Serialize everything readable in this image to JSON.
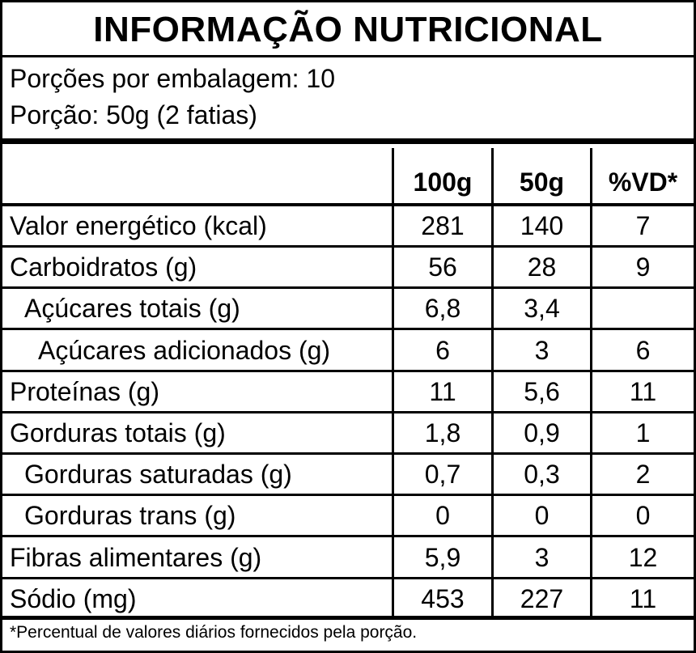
{
  "title": "INFORMAÇÃO NUTRICIONAL",
  "serving": {
    "servings_per_package": "Porções por embalagem: 10",
    "serving_size": "Porção: 50g (2 fatias)"
  },
  "columns": [
    "100g",
    "50g",
    "%VD*"
  ],
  "rows": [
    {
      "name": "Valor energético (kcal)",
      "per100": "281",
      "perServing": "140",
      "dv": "7",
      "indent": 0
    },
    {
      "name": "Carboidratos (g)",
      "per100": "56",
      "perServing": "28",
      "dv": "9",
      "indent": 0
    },
    {
      "name": "Açúcares totais (g)",
      "per100": "6,8",
      "perServing": "3,4",
      "dv": "",
      "indent": 1
    },
    {
      "name": "Açúcares adicionados (g)",
      "per100": "6",
      "perServing": "3",
      "dv": "6",
      "indent": 2
    },
    {
      "name": "Proteínas (g)",
      "per100": "11",
      "perServing": "5,6",
      "dv": "11",
      "indent": 0
    },
    {
      "name": "Gorduras totais (g)",
      "per100": "1,8",
      "perServing": "0,9",
      "dv": "1",
      "indent": 0
    },
    {
      "name": "Gorduras saturadas (g)",
      "per100": "0,7",
      "perServing": "0,3",
      "dv": "2",
      "indent": 1
    },
    {
      "name": "Gorduras trans (g)",
      "per100": "0",
      "perServing": "0",
      "dv": "0",
      "indent": 1
    },
    {
      "name": "Fibras alimentares (g)",
      "per100": "5,9",
      "perServing": "3",
      "dv": "12",
      "indent": 0
    },
    {
      "name": "Sódio (mg)",
      "per100": "453",
      "perServing": "227",
      "dv": "11",
      "indent": 0
    }
  ],
  "footnote": "*Percentual de valores diários fornecidos pela porção."
}
